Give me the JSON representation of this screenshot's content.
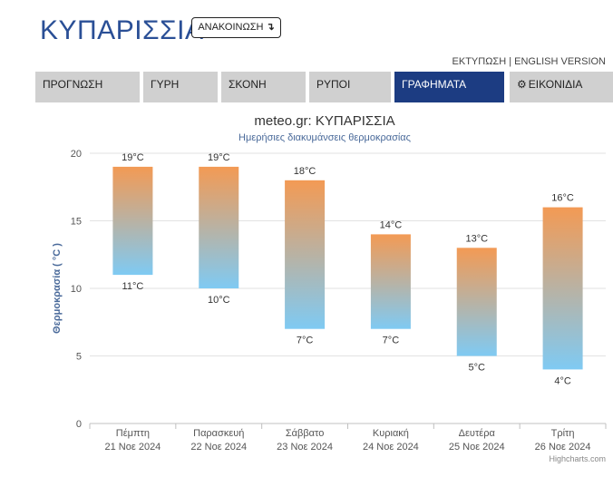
{
  "header": {
    "city": "ΚΥΠΑΡΙΣΣΙΑ",
    "announce_label": "ΑΝΑΚΟΙΝΩΣΗ",
    "announce_icon": "arrow-down-turn-icon",
    "print_label": "ΕΚΤΥΠΩΣΗ",
    "separator": " | ",
    "english_label": "ENGLISH VERSION"
  },
  "tabs": [
    {
      "label": "ΠΡΟΓΝΩΣΗ",
      "active": false
    },
    {
      "label": "ΓΥΡΗ",
      "active": false
    },
    {
      "label": "ΣΚΟΝΗ",
      "active": false
    },
    {
      "label": "ΡΥΠΟΙ",
      "active": false
    },
    {
      "label": "ΓΡΑΦΗΜΑΤΑ",
      "active": true
    },
    {
      "label": "ΕΙΚΟΝΙΔΙΑ",
      "active": false,
      "icon": "gear-icon"
    }
  ],
  "colors": {
    "brand": "#2a4f96",
    "active_tab": "#1c3c82",
    "bar_top": "#f39a54",
    "bar_bottom": "#7fcaf3"
  },
  "chart_data": {
    "type": "columnrange",
    "title": "meteo.gr: ΚΥΠΑΡΙΣΣΙΑ",
    "subtitle": "Ημερήσιες διακυμάνσεις θερμοκρασίας",
    "ylabel": "Θερμοκρασία ( °C )",
    "ylim": [
      0,
      20
    ],
    "yticks": [
      0,
      5,
      10,
      15,
      20
    ],
    "grid": true,
    "unit": "°C",
    "categories": [
      {
        "day": "Πέμπτη",
        "date": "21 Νοε 2024"
      },
      {
        "day": "Παρασκευή",
        "date": "22 Νοε 2024"
      },
      {
        "day": "Σάββατο",
        "date": "23 Νοε 2024"
      },
      {
        "day": "Κυριακή",
        "date": "24 Νοε 2024"
      },
      {
        "day": "Δευτέρα",
        "date": "25 Νοε 2024"
      },
      {
        "day": "Τρίτη",
        "date": "26 Νοε 2024"
      }
    ],
    "low": [
      11,
      10,
      7,
      7,
      5,
      4
    ],
    "high": [
      19,
      19,
      18,
      14,
      13,
      16
    ],
    "credit": "Highcharts.com"
  }
}
